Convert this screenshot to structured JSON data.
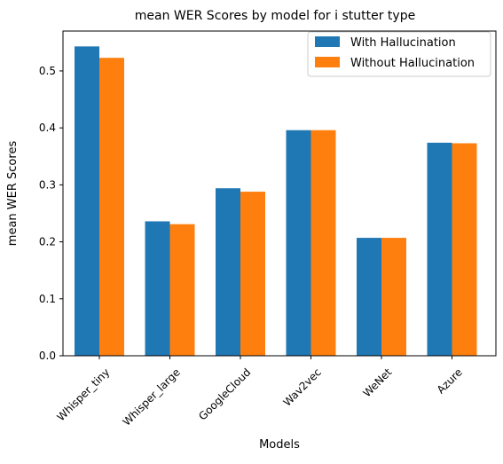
{
  "chart_data": {
    "type": "bar",
    "title": "mean WER Scores by model for i stutter type",
    "xlabel": "Models",
    "ylabel": "mean WER Scores",
    "categories": [
      "Whisper_tiny",
      "Whisper_large",
      "GoogleCloud",
      "Wav2vec",
      "WeNet",
      "Azure"
    ],
    "series": [
      {
        "name": "With Hallucination",
        "color": "#1f77b4",
        "values": [
          0.543,
          0.236,
          0.294,
          0.396,
          0.207,
          0.374
        ]
      },
      {
        "name": "Without Hallucination",
        "color": "#ff7f0e",
        "values": [
          0.523,
          0.231,
          0.288,
          0.396,
          0.207,
          0.373
        ]
      }
    ],
    "ylim": [
      0,
      0.57
    ],
    "yticks": [
      "0.0",
      "0.1",
      "0.2",
      "0.3",
      "0.4",
      "0.5"
    ],
    "grid": false,
    "legend_position": "upper right"
  }
}
